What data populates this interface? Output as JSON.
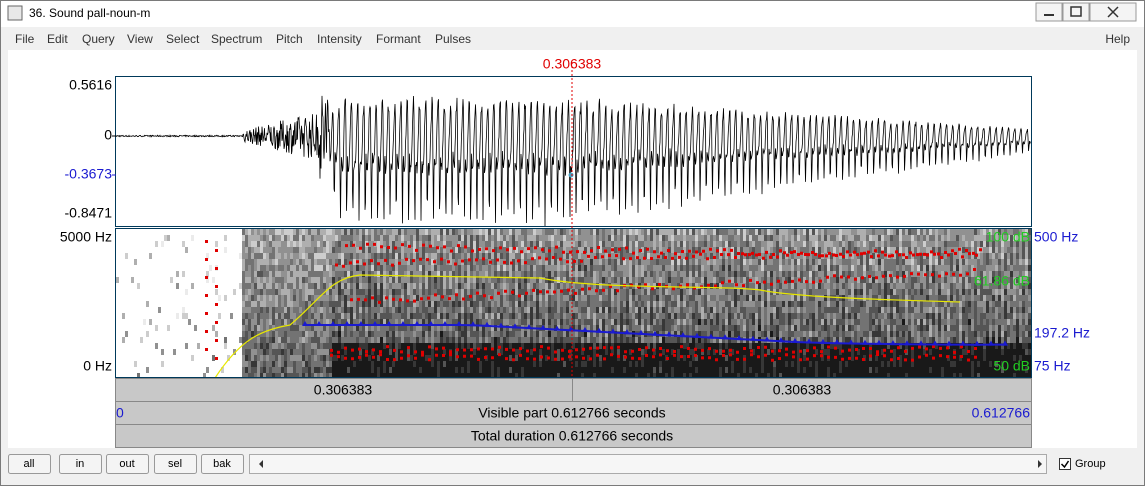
{
  "window": {
    "title": "36. Sound pall-noun-m"
  },
  "menu": {
    "items": [
      "File",
      "Edit",
      "Query",
      "View",
      "Select",
      "Spectrum",
      "Pitch",
      "Intensity",
      "Formant",
      "Pulses"
    ],
    "help": "Help"
  },
  "cursor": {
    "time": "0.306383"
  },
  "waveform": {
    "ticks": [
      "0.5616",
      "0",
      "-0.3673",
      "-0.8471"
    ]
  },
  "spectrogram": {
    "top": "5000 Hz",
    "bottom": "0 Hz",
    "intensity_top": "100 dB",
    "pitch_top": "500 Hz",
    "intensity_value": "61.86 dB",
    "pitch_value": "197.2 Hz",
    "intensity_bottom": "50 dB",
    "pitch_bottom": "75 Hz"
  },
  "bars": {
    "left": "0.306383",
    "right": "0.306383",
    "start": "0",
    "visible": "Visible part 0.612766 seconds",
    "end": "0.612766",
    "total": "Total duration 0.612766 seconds"
  },
  "buttons": [
    "all",
    "in",
    "out",
    "sel",
    "bak"
  ],
  "group": "Group"
}
